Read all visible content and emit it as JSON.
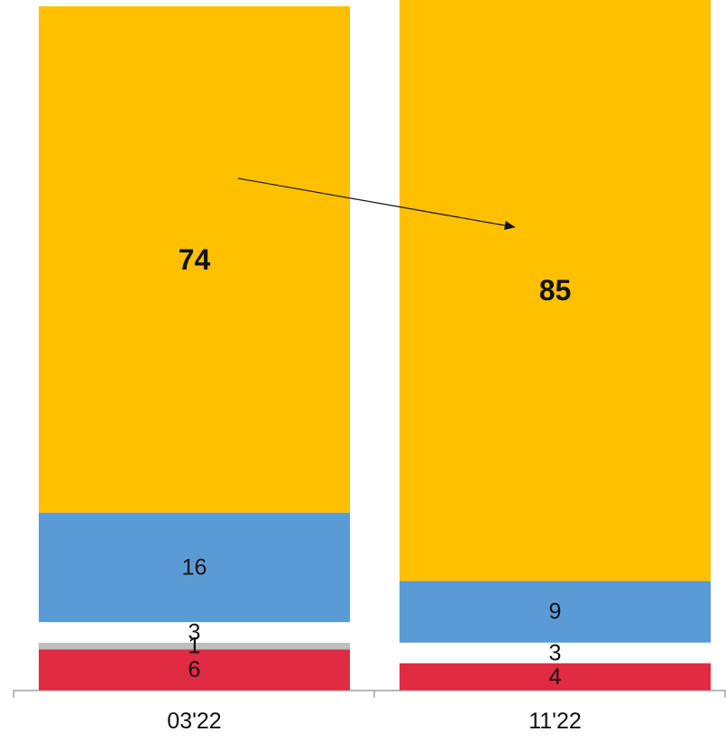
{
  "chart_data": {
    "type": "bar",
    "stacked": true,
    "categories": [
      "03'22",
      "11'22"
    ],
    "series": [
      {
        "values": [
          6,
          4
        ],
        "color": "#E02B43"
      },
      {
        "values": [
          1,
          0
        ],
        "color": "#BFBFBF"
      },
      {
        "values": [
          3,
          3
        ],
        "color": "#FFFFFF"
      },
      {
        "values": [
          16,
          9
        ],
        "color": "#5B9BD5"
      },
      {
        "values": [
          74,
          85
        ],
        "color": "#FFC000"
      }
    ],
    "ylim": [
      0,
      100
    ],
    "emphasized_series_index": 4,
    "annotation": "arrow",
    "grid": false,
    "legend": "none"
  }
}
